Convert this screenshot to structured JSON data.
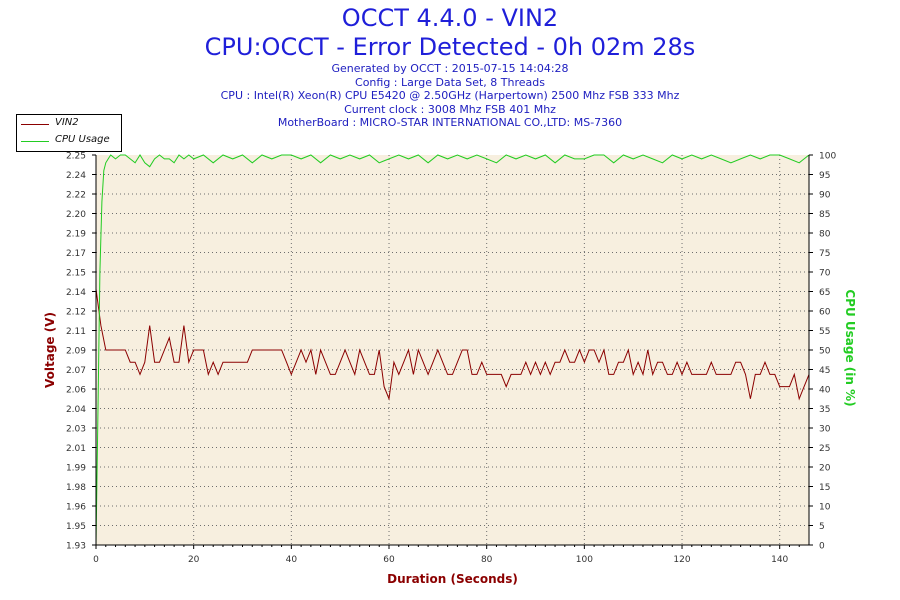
{
  "header": {
    "title": "OCCT 4.4.0 - VIN2",
    "subtitle": "CPU:OCCT - Error Detected - 0h 02m 28s",
    "info_lines": [
      "Generated by OCCT : 2015-07-15 14:04:28",
      "Config : Large Data Set, 8 Threads",
      "CPU : Intel(R) Xeon(R) CPU E5420 @ 2.50GHz (Harpertown) 2500 Mhz FSB 333 Mhz",
      "Current clock : 3008 Mhz FSB 401 Mhz",
      "MotherBoard : MICRO-STAR INTERNATIONAL CO.,LTD: MS-7360"
    ]
  },
  "colors": {
    "vin2": "#8b0000",
    "cpu": "#22cc22",
    "plot_bg": "#f7efdf",
    "grid": "#6e6e6e",
    "title": "#1f1fd9"
  },
  "chart_data": {
    "type": "line",
    "xlabel": "Duration (Seconds)",
    "ylabel": "Voltage (V)",
    "ylabel_right": "CPU Usage (in %)",
    "x_ticks": [
      0,
      20,
      40,
      60,
      80,
      100,
      120,
      140
    ],
    "xlim": [
      0,
      146
    ],
    "y_ticks": [
      "1.93",
      "1.95",
      "1.96",
      "1.98",
      "1.99",
      "2.01",
      "2.03",
      "2.04",
      "2.06",
      "2.07",
      "2.09",
      "2.11",
      "2.12",
      "2.14",
      "2.15",
      "2.17",
      "2.19",
      "2.20",
      "2.22",
      "2.24",
      "2.25"
    ],
    "ylim": [
      1.93,
      2.25
    ],
    "y2_ticks": [
      0,
      5,
      10,
      15,
      20,
      25,
      30,
      35,
      40,
      45,
      50,
      55,
      60,
      65,
      70,
      75,
      80,
      85,
      90,
      95,
      100
    ],
    "y2lim": [
      0,
      100
    ],
    "grid": true,
    "legend_position": "top-left, outside plot",
    "series": [
      {
        "name": "VIN2",
        "axis": "left",
        "x": [
          0,
          1,
          2,
          3,
          4,
          5,
          6,
          7,
          8,
          9,
          10,
          11,
          12,
          13,
          14,
          15,
          16,
          17,
          18,
          19,
          20,
          21,
          22,
          23,
          24,
          25,
          26,
          27,
          28,
          29,
          30,
          31,
          32,
          33,
          34,
          35,
          36,
          37,
          38,
          39,
          40,
          41,
          42,
          43,
          44,
          45,
          46,
          47,
          48,
          49,
          50,
          51,
          52,
          53,
          54,
          55,
          56,
          57,
          58,
          59,
          60,
          61,
          62,
          63,
          64,
          65,
          66,
          67,
          68,
          69,
          70,
          71,
          72,
          73,
          74,
          75,
          76,
          77,
          78,
          79,
          80,
          81,
          82,
          83,
          84,
          85,
          86,
          87,
          88,
          89,
          90,
          91,
          92,
          93,
          94,
          95,
          96,
          97,
          98,
          99,
          100,
          101,
          102,
          103,
          104,
          105,
          106,
          107,
          108,
          109,
          110,
          111,
          112,
          113,
          114,
          115,
          116,
          117,
          118,
          119,
          120,
          121,
          122,
          123,
          124,
          125,
          126,
          127,
          128,
          129,
          130,
          131,
          132,
          133,
          134,
          135,
          136,
          137,
          138,
          139,
          140,
          141,
          142,
          143,
          144,
          145,
          146
        ],
        "values": [
          2.14,
          2.11,
          2.09,
          2.09,
          2.09,
          2.09,
          2.09,
          2.08,
          2.08,
          2.07,
          2.08,
          2.11,
          2.08,
          2.08,
          2.09,
          2.1,
          2.08,
          2.08,
          2.11,
          2.08,
          2.09,
          2.09,
          2.09,
          2.07,
          2.08,
          2.07,
          2.08,
          2.08,
          2.08,
          2.08,
          2.08,
          2.08,
          2.09,
          2.09,
          2.09,
          2.09,
          2.09,
          2.09,
          2.09,
          2.08,
          2.07,
          2.08,
          2.09,
          2.08,
          2.09,
          2.07,
          2.09,
          2.08,
          2.07,
          2.07,
          2.08,
          2.09,
          2.08,
          2.07,
          2.09,
          2.08,
          2.07,
          2.07,
          2.09,
          2.06,
          2.05,
          2.08,
          2.07,
          2.08,
          2.09,
          2.07,
          2.09,
          2.08,
          2.07,
          2.08,
          2.09,
          2.08,
          2.07,
          2.07,
          2.08,
          2.09,
          2.09,
          2.07,
          2.07,
          2.08,
          2.07,
          2.07,
          2.07,
          2.07,
          2.06,
          2.07,
          2.07,
          2.07,
          2.08,
          2.07,
          2.08,
          2.07,
          2.08,
          2.07,
          2.08,
          2.08,
          2.09,
          2.08,
          2.08,
          2.09,
          2.08,
          2.09,
          2.09,
          2.08,
          2.09,
          2.07,
          2.07,
          2.08,
          2.08,
          2.09,
          2.07,
          2.08,
          2.07,
          2.09,
          2.07,
          2.08,
          2.08,
          2.07,
          2.07,
          2.08,
          2.07,
          2.08,
          2.07,
          2.07,
          2.07,
          2.07,
          2.08,
          2.07,
          2.07,
          2.07,
          2.07,
          2.08,
          2.08,
          2.07,
          2.05,
          2.07,
          2.07,
          2.08,
          2.07,
          2.07,
          2.06,
          2.06,
          2.06,
          2.07,
          2.05,
          2.06,
          2.07
        ]
      },
      {
        "name": "CPU Usage",
        "axis": "right",
        "x": [
          0,
          0.4,
          0.8,
          1.2,
          1.6,
          2,
          2.5,
          3,
          4,
          5,
          6,
          7,
          8,
          9,
          10,
          11,
          12,
          13,
          14,
          15,
          16,
          17,
          18,
          19,
          20,
          22,
          24,
          26,
          28,
          30,
          32,
          34,
          36,
          38,
          40,
          42,
          44,
          46,
          48,
          50,
          52,
          54,
          56,
          58,
          60,
          62,
          64,
          66,
          68,
          70,
          72,
          74,
          76,
          78,
          80,
          82,
          84,
          86,
          88,
          90,
          92,
          94,
          96,
          98,
          100,
          102,
          104,
          106,
          108,
          110,
          112,
          114,
          116,
          118,
          120,
          122,
          124,
          126,
          128,
          130,
          132,
          134,
          136,
          138,
          140,
          142,
          144,
          145,
          146
        ],
        "values": [
          0,
          35,
          70,
          88,
          96,
          98,
          99,
          100,
          99,
          100,
          100,
          99,
          98,
          100,
          98,
          97,
          99,
          100,
          99,
          99,
          98,
          100,
          99,
          100,
          99,
          100,
          98,
          100,
          99,
          100,
          98,
          100,
          99,
          100,
          100,
          99,
          100,
          98,
          100,
          99,
          100,
          99,
          100,
          98,
          99,
          100,
          99,
          100,
          98,
          100,
          99,
          100,
          99,
          100,
          99,
          98,
          100,
          99,
          100,
          99,
          100,
          98,
          100,
          99,
          99,
          100,
          100,
          98,
          100,
          99,
          100,
          99,
          98,
          100,
          99,
          100,
          99,
          100,
          99,
          98,
          99,
          100,
          99,
          100,
          100,
          99,
          98,
          99,
          100
        ]
      }
    ]
  }
}
